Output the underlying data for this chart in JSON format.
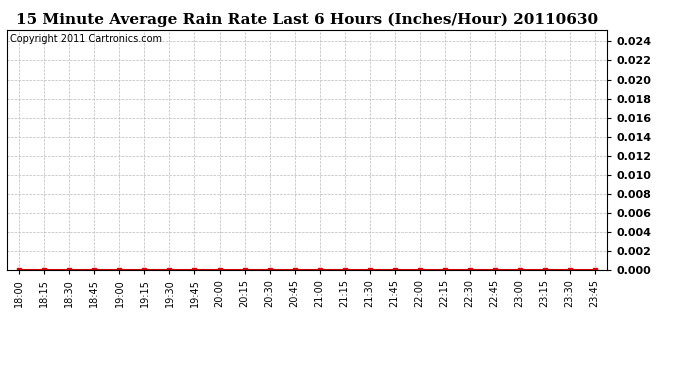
{
  "title": "15 Minute Average Rain Rate Last 6 Hours (Inches/Hour) 20110630",
  "copyright_text": "Copyright 2011 Cartronics.com",
  "x_labels": [
    "18:00",
    "18:15",
    "18:30",
    "18:45",
    "19:00",
    "19:15",
    "19:30",
    "19:45",
    "20:00",
    "20:15",
    "20:30",
    "20:45",
    "21:00",
    "21:15",
    "21:30",
    "21:45",
    "22:00",
    "22:15",
    "22:30",
    "22:45",
    "23:00",
    "23:15",
    "23:30",
    "23:45"
  ],
  "y_values": [
    0,
    0,
    0,
    0,
    0,
    0,
    0,
    0,
    0,
    0,
    0,
    0,
    0,
    0,
    0,
    0,
    0,
    0,
    0,
    0,
    0,
    0,
    0,
    0
  ],
  "ylim": [
    0,
    0.0252
  ],
  "yticks": [
    0.0,
    0.002,
    0.004,
    0.006,
    0.008,
    0.01,
    0.012,
    0.014,
    0.016,
    0.018,
    0.02,
    0.022,
    0.024
  ],
  "line_color": "#dd0000",
  "marker_color": "#dd0000",
  "marker": "s",
  "marker_size": 3,
  "grid_color": "#bbbbbb",
  "background_color": "#ffffff",
  "plot_bg_color": "#ffffff",
  "title_fontsize": 11,
  "copyright_fontsize": 7,
  "tick_fontsize": 7,
  "ytick_fontsize": 8
}
